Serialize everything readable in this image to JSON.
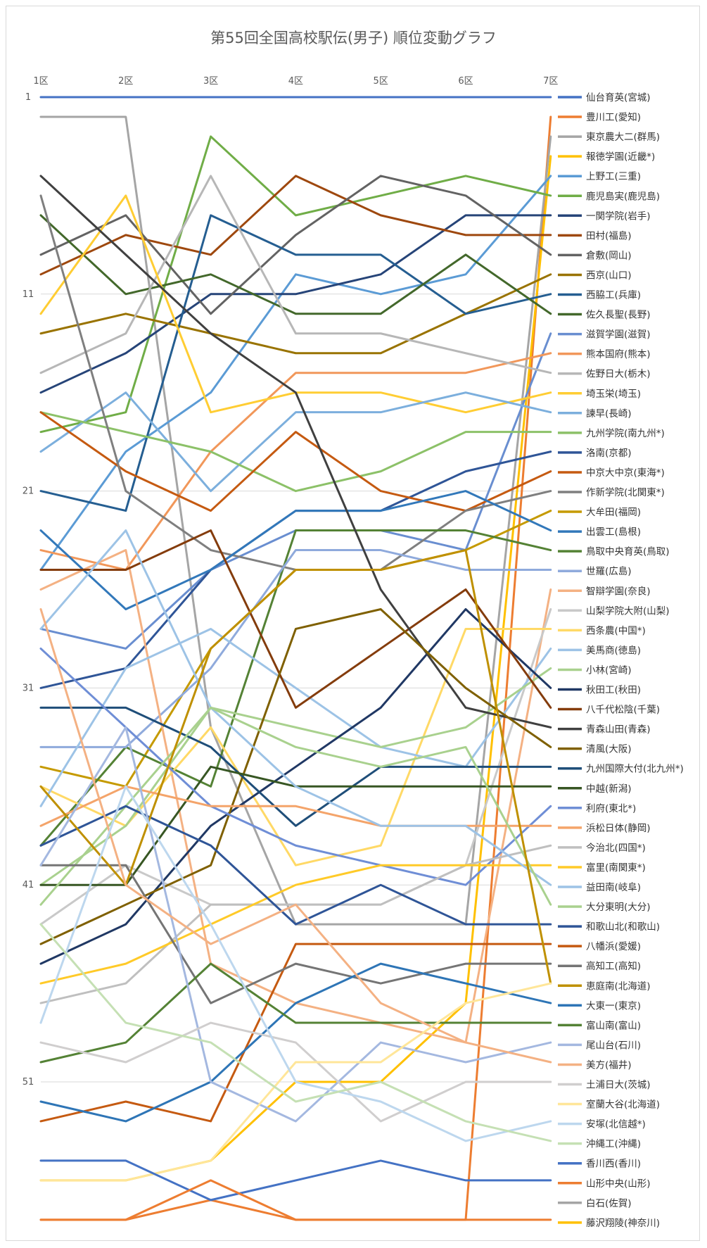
{
  "chart_data": {
    "type": "line",
    "title": "第55回全国高校駅伝(男子) 順位変動グラフ",
    "categories": [
      "1区",
      "2区",
      "3区",
      "4区",
      "5区",
      "6区",
      "7区"
    ],
    "y_axis": {
      "reversed": true,
      "range": [
        1,
        58
      ],
      "ticks": [
        "1",
        "11",
        "21",
        "31",
        "41",
        "51"
      ]
    },
    "grid": true,
    "legend_position": "right",
    "series": [
      {
        "name": "仙台育英(宮城)",
        "color": "#4472C4",
        "values": [
          1,
          1,
          1,
          1,
          1,
          1,
          1
        ]
      },
      {
        "name": "豊川工(愛知)",
        "color": "#ED7D31",
        "values": [
          58,
          58,
          57,
          58,
          58,
          58,
          2
        ]
      },
      {
        "name": "東京農大二(群馬)",
        "color": "#A5A5A5",
        "values": [
          2,
          2,
          33,
          43,
          43,
          43,
          3
        ]
      },
      {
        "name": "報徳学園(近畿*)",
        "color": "#FFC000",
        "values": [
          56,
          56,
          55,
          51,
          51,
          47,
          4
        ]
      },
      {
        "name": "上野工(三重)",
        "color": "#5B9BD5",
        "values": [
          25,
          19,
          16,
          10,
          11,
          10,
          5
        ]
      },
      {
        "name": "鹿児島実(鹿児島)",
        "color": "#70AD47",
        "values": [
          18,
          17,
          3,
          7,
          6,
          5,
          6
        ]
      },
      {
        "name": "一関学院(岩手)",
        "color": "#264478",
        "values": [
          16,
          14,
          11,
          11,
          10,
          7,
          7
        ]
      },
      {
        "name": "田村(福島)",
        "color": "#9E480E",
        "values": [
          10,
          8,
          9,
          5,
          7,
          8,
          8
        ]
      },
      {
        "name": "倉敷(岡山)",
        "color": "#636363",
        "values": [
          9,
          7,
          12,
          8,
          5,
          6,
          9
        ]
      },
      {
        "name": "西京(山口)",
        "color": "#997300",
        "values": [
          13,
          12,
          13,
          14,
          14,
          12,
          10
        ]
      },
      {
        "name": "西脇工(兵庫)",
        "color": "#255E91",
        "values": [
          21,
          22,
          7,
          9,
          9,
          12,
          11
        ]
      },
      {
        "name": "佐久長聖(長野)",
        "color": "#43682B",
        "values": [
          7,
          11,
          10,
          12,
          12,
          9,
          12
        ]
      },
      {
        "name": "滋賀学園(滋賀)",
        "color": "#698ED0",
        "values": [
          28,
          29,
          25,
          23,
          23,
          24,
          13
        ]
      },
      {
        "name": "熊本国府(熊本)",
        "color": "#F1975A",
        "values": [
          24,
          25,
          19,
          15,
          15,
          15,
          14
        ]
      },
      {
        "name": "佐野日大(栃木)",
        "color": "#B7B7B7",
        "values": [
          15,
          13,
          5,
          13,
          13,
          14,
          15
        ]
      },
      {
        "name": "埼玉栄(埼玉)",
        "color": "#FFCD33",
        "values": [
          12,
          6,
          17,
          16,
          16,
          17,
          16
        ]
      },
      {
        "name": "諫早(長崎)",
        "color": "#7CAFDD",
        "values": [
          19,
          16,
          21,
          17,
          17,
          16,
          17
        ]
      },
      {
        "name": "九州学院(南九州*)",
        "color": "#8CC168",
        "values": [
          17,
          18,
          19,
          21,
          20,
          18,
          18
        ]
      },
      {
        "name": "洛南(京都)",
        "color": "#2F5597",
        "values": [
          31,
          30,
          25,
          22,
          22,
          20,
          19
        ]
      },
      {
        "name": "中京大中京(東海*)",
        "color": "#C55A11",
        "values": [
          17,
          20,
          22,
          18,
          21,
          22,
          20
        ]
      },
      {
        "name": "作新学院(北関東*)",
        "color": "#7F7F7F",
        "values": [
          6,
          21,
          24,
          25,
          25,
          22,
          21
        ]
      },
      {
        "name": "大牟田(福岡)",
        "color": "#C59A00",
        "values": [
          35,
          36,
          29,
          25,
          25,
          24,
          22
        ]
      },
      {
        "name": "出雲工(島根)",
        "color": "#3278BA",
        "values": [
          23,
          27,
          25,
          22,
          22,
          21,
          23
        ]
      },
      {
        "name": "鳥取中央育英(鳥取)",
        "color": "#548235",
        "values": [
          39,
          34,
          36,
          23,
          23,
          23,
          24
        ]
      },
      {
        "name": "世羅(広島)",
        "color": "#8FAADC",
        "values": [
          34,
          34,
          30,
          24,
          24,
          25,
          25
        ]
      },
      {
        "name": "智辯学園(奈良)",
        "color": "#F4B183",
        "values": [
          26,
          24,
          45,
          47,
          48,
          49,
          26
        ]
      },
      {
        "name": "山梨学院大附(山梨)",
        "color": "#C9C9C9",
        "values": [
          43,
          40,
          42,
          42,
          42,
          40,
          27
        ]
      },
      {
        "name": "西条農(中国*)",
        "color": "#FFD966",
        "values": [
          36,
          38,
          33,
          40,
          39,
          28,
          28
        ]
      },
      {
        "name": "美馬商(徳島)",
        "color": "#9DC3E6",
        "values": [
          37,
          30,
          28,
          31,
          34,
          35,
          29
        ]
      },
      {
        "name": "小林(宮崎)",
        "color": "#A9D18E",
        "values": [
          41,
          38,
          32,
          33,
          34,
          33,
          30
        ]
      },
      {
        "name": "秋田工(秋田)",
        "color": "#203864",
        "values": [
          45,
          43,
          38,
          35,
          32,
          27,
          31
        ]
      },
      {
        "name": "八千代松陰(千葉)",
        "color": "#843C0C",
        "values": [
          25,
          25,
          23,
          32,
          29,
          26,
          32
        ]
      },
      {
        "name": "青森山田(青森)",
        "color": "#404040",
        "values": [
          5,
          9,
          13,
          16,
          26,
          32,
          33
        ]
      },
      {
        "name": "清風(大阪)",
        "color": "#7F6000",
        "values": [
          44,
          42,
          40,
          28,
          27,
          31,
          34
        ]
      },
      {
        "name": "九州国際大付(北九州*)",
        "color": "#1F4E79",
        "values": [
          32,
          32,
          34,
          38,
          35,
          35,
          35
        ]
      },
      {
        "name": "中越(新潟)",
        "color": "#375623",
        "values": [
          41,
          41,
          35,
          36,
          36,
          36,
          36
        ]
      },
      {
        "name": "利府(東北*)",
        "color": "#6F8ED6",
        "values": [
          29,
          33,
          37,
          39,
          40,
          41,
          37
        ]
      },
      {
        "name": "浜松日体(静岡)",
        "color": "#F4A46A",
        "values": [
          38,
          36,
          37,
          37,
          38,
          38,
          38
        ]
      },
      {
        "name": "今治北(四国*)",
        "color": "#BFBFBF",
        "values": [
          47,
          46,
          42,
          42,
          42,
          40,
          39
        ]
      },
      {
        "name": "富里(南関東*)",
        "color": "#FFCA28",
        "values": [
          46,
          45,
          43,
          41,
          40,
          40,
          40
        ]
      },
      {
        "name": "益田南(岐阜)",
        "color": "#9DC3E6",
        "values": [
          28,
          23,
          32,
          36,
          38,
          38,
          41
        ]
      },
      {
        "name": "大分東明(大分)",
        "color": "#A9D18E",
        "values": [
          42,
          37,
          32,
          34,
          35,
          34,
          42
        ]
      },
      {
        "name": "和歌山北(和歌山)",
        "color": "#2F5597",
        "values": [
          39,
          37,
          39,
          43,
          41,
          43,
          43
        ]
      },
      {
        "name": "八幡浜(愛媛)",
        "color": "#C55A11",
        "values": [
          53,
          52,
          53,
          44,
          44,
          44,
          44
        ]
      },
      {
        "name": "高知工(高知)",
        "color": "#757575",
        "values": [
          40,
          40,
          47,
          45,
          46,
          45,
          45
        ]
      },
      {
        "name": "恵庭南(北海道)",
        "color": "#BF9000",
        "values": [
          36,
          41,
          29,
          25,
          25,
          24,
          46
        ]
      },
      {
        "name": "大東一(東京)",
        "color": "#2E75B6",
        "values": [
          52,
          53,
          51,
          47,
          45,
          46,
          47
        ]
      },
      {
        "name": "富山南(富山)",
        "color": "#548235",
        "values": [
          50,
          49,
          45,
          48,
          48,
          48,
          48
        ]
      },
      {
        "name": "尾山台(石川)",
        "color": "#A4B8E0",
        "values": [
          40,
          33,
          51,
          53,
          49,
          50,
          49
        ]
      },
      {
        "name": "美方(福井)",
        "color": "#F4B183",
        "values": [
          27,
          41,
          44,
          42,
          47,
          49,
          50
        ]
      },
      {
        "name": "土浦日大(茨城)",
        "color": "#D0CECE",
        "values": [
          49,
          50,
          48,
          49,
          53,
          51,
          51
        ]
      },
      {
        "name": "室蘭大谷(北海道)",
        "color": "#FFE699",
        "values": [
          56,
          56,
          55,
          50,
          50,
          47,
          46
        ]
      },
      {
        "name": "安塚(北信越*)",
        "color": "#BDD7EE",
        "values": [
          48,
          36,
          43,
          51,
          52,
          54,
          53
        ]
      },
      {
        "name": "沖縄工(沖縄)",
        "color": "#C5E0B4",
        "values": [
          43,
          48,
          49,
          52,
          51,
          53,
          54
        ]
      },
      {
        "name": "香川西(香川)",
        "color": "#4472C4",
        "values": [
          55,
          55,
          57,
          56,
          55,
          56,
          56
        ]
      },
      {
        "name": "山形中央(山形)",
        "color": "#ED7D31",
        "values": [
          58,
          58,
          56,
          58,
          58,
          58,
          58
        ]
      },
      {
        "name": "白石(佐賀)",
        "color": "#A5A5A5",
        "values": [
          null,
          null,
          null,
          null,
          null,
          null,
          null
        ]
      },
      {
        "name": "藤沢翔陵(神奈川)",
        "color": "#FFC000",
        "values": [
          null,
          null,
          null,
          null,
          null,
          null,
          null
        ]
      }
    ]
  }
}
